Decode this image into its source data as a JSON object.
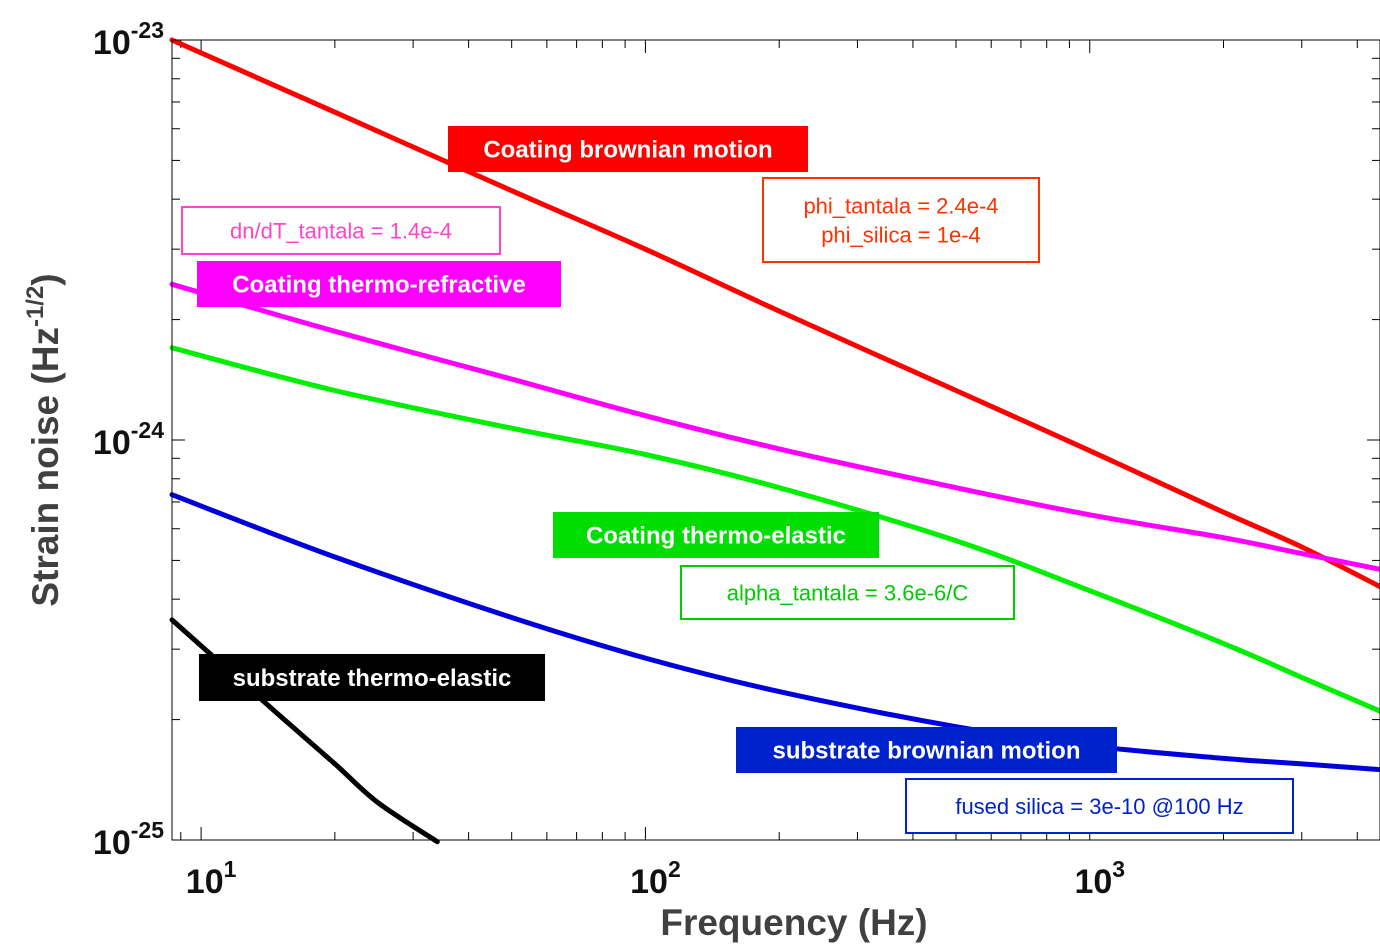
{
  "chart_data": {
    "type": "line",
    "xlabel": "Frequency (Hz)",
    "ylabel": "Strain noise (Hz",
    "ylabel_exp": "-1/2",
    "ylabel_close": ")",
    "xscale": "log",
    "yscale": "log",
    "xlim": [
      8.6,
      4500
    ],
    "ylim": [
      1e-25,
      1e-23
    ],
    "grid": false,
    "x_ticks": [
      {
        "base": "10",
        "exp": "1",
        "value": 10
      },
      {
        "base": "10",
        "exp": "2",
        "value": 100
      },
      {
        "base": "10",
        "exp": "3",
        "value": 1000
      }
    ],
    "y_ticks": [
      {
        "base": "10",
        "exp": "-23",
        "value": 1e-23
      },
      {
        "base": "10",
        "exp": "-24",
        "value": 1e-24
      },
      {
        "base": "10",
        "exp": "-25",
        "value": 1e-25
      }
    ],
    "series": [
      {
        "name": "Coating brownian motion",
        "color": "#ff0000",
        "x": [
          8.6,
          20,
          50,
          100,
          200,
          500,
          1000,
          2000,
          3000,
          4500
        ],
        "y": [
          1e-23,
          6.6e-24,
          4.2e-24,
          3e-24,
          2.1e-24,
          1.33e-24,
          9.4e-25,
          6.6e-25,
          5.4e-25,
          4.3e-25
        ]
      },
      {
        "name": "Coating thermo-refractive",
        "color": "#ff00ff",
        "x": [
          8.6,
          20,
          50,
          100,
          200,
          500,
          1000,
          2000,
          3000,
          4500
        ],
        "y": [
          2.45e-24,
          1.87e-24,
          1.42e-24,
          1.15e-24,
          9.5e-25,
          7.6e-25,
          6.5e-25,
          5.7e-25,
          5.2e-25,
          4.75e-25
        ]
      },
      {
        "name": "Coating thermo-elastic",
        "color": "#00ee00",
        "x": [
          8.6,
          20,
          50,
          100,
          200,
          500,
          1000,
          2000,
          3000,
          4500
        ],
        "y": [
          1.7e-24,
          1.33e-24,
          1.07e-24,
          9.2e-25,
          7.6e-25,
          5.6e-25,
          4.2e-25,
          3.1e-25,
          2.55e-25,
          2.1e-25
        ]
      },
      {
        "name": "substrate brownian motion",
        "color": "#0000dd",
        "x": [
          8.6,
          20,
          50,
          100,
          200,
          500,
          1000,
          2000,
          3000,
          4500
        ],
        "y": [
          7.3e-25,
          5.1e-25,
          3.6e-25,
          2.85e-25,
          2.35e-25,
          1.92e-25,
          1.72e-25,
          1.6e-25,
          1.55e-25,
          1.5e-25
        ]
      },
      {
        "name": "substrate thermo-elastic",
        "color": "#000000",
        "x": [
          8.6,
          15,
          20,
          25,
          34
        ],
        "y": [
          3.55e-25,
          2.05e-25,
          1.55e-25,
          1.24e-25,
          9.9e-26
        ]
      }
    ],
    "annotations": [
      {
        "lines": [
          "Coating brownian motion"
        ],
        "style": "filled",
        "color": "#ff0000"
      },
      {
        "lines": [
          "phi_tantala = 2.4e-4",
          "phi_silica = 1e-4"
        ],
        "style": "outline",
        "color": "#ff3300"
      },
      {
        "lines": [
          "dn/dT_tantala = 1.4e-4"
        ],
        "style": "outline",
        "color": "#ff44cc"
      },
      {
        "lines": [
          "Coating thermo-refractive"
        ],
        "style": "filled",
        "color": "#ff00ff"
      },
      {
        "lines": [
          "Coating thermo-elastic"
        ],
        "style": "filled",
        "color": "#00dd00"
      },
      {
        "lines": [
          "alpha_tantala = 3.6e-6/C"
        ],
        "style": "outline",
        "color": "#00cc00"
      },
      {
        "lines": [
          "substrate thermo-elastic"
        ],
        "style": "filled",
        "color": "#000000"
      },
      {
        "lines": [
          "substrate brownian motion"
        ],
        "style": "filled",
        "color": "#0022cc"
      },
      {
        "lines": [
          "fused silica = 3e-10 @100 Hz"
        ],
        "style": "outline",
        "color": "#0022cc"
      }
    ]
  }
}
